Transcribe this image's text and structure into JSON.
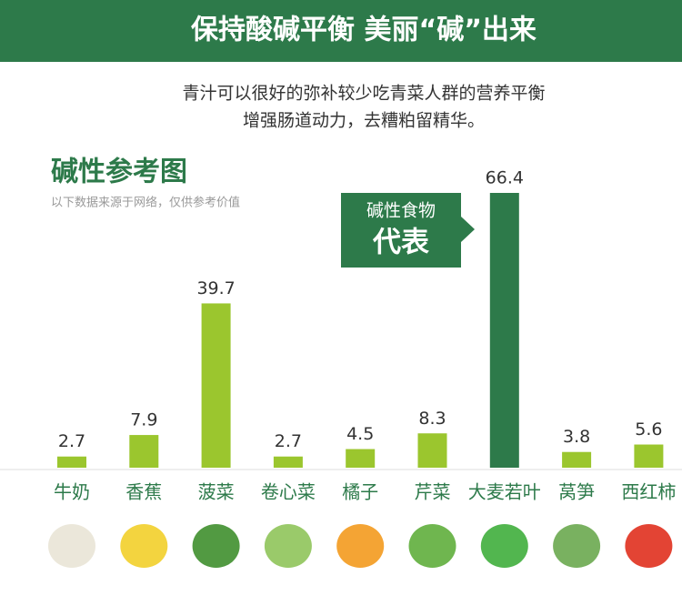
{
  "header": {
    "title": "保持酸碱平衡 美丽“碱”出来",
    "intro": [
      "青汁可以很好的弥补较少吃青菜人群的营养平衡",
      "增强肠道动力，去糟粕留精华。"
    ]
  },
  "chart_data": {
    "type": "bar",
    "title": "碱性参考图",
    "subtitle": "以下数据来源于网络，仅供参考价值",
    "categories": [
      "牛奶",
      "香蕉",
      "菠菜",
      "卷心菜",
      "橘子",
      "芹菜",
      "大麦若叶",
      "莴笋",
      "西红柿"
    ],
    "values": [
      2.7,
      7.9,
      39.7,
      2.7,
      4.5,
      8.3,
      66.4,
      3.8,
      5.6
    ],
    "colors": [
      "#9bc62e",
      "#9bc62e",
      "#9bc62e",
      "#9bc62e",
      "#9bc62e",
      "#9bc62e",
      "#2d7a4a",
      "#9bc62e",
      "#9bc62e"
    ],
    "annotation": [
      "碱性食物",
      "代表"
    ]
  }
}
